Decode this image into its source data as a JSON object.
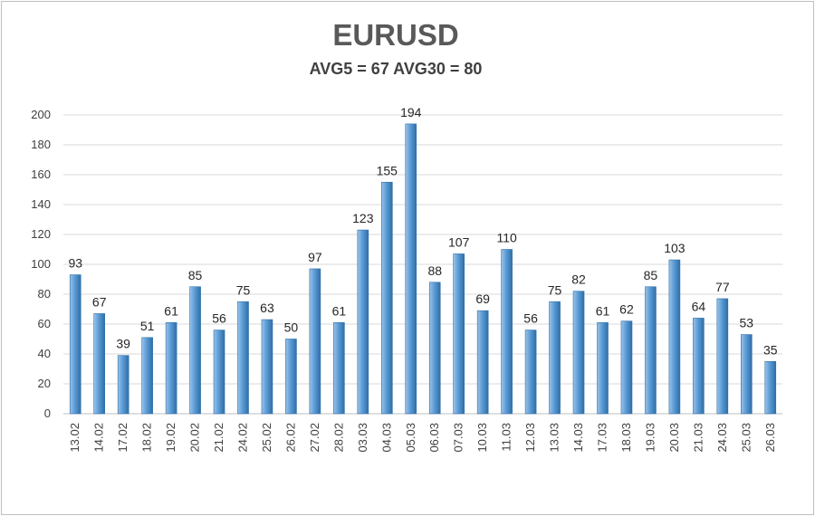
{
  "chart_data": {
    "type": "bar",
    "title": "EURUSD",
    "subtitle": "AVG5 = 67 AVG30 = 80",
    "xlabel": "",
    "ylabel": "",
    "ylim": [
      0,
      200
    ],
    "yticks": [
      0,
      20,
      40,
      60,
      80,
      100,
      120,
      140,
      160,
      180,
      200
    ],
    "grid": true,
    "categories": [
      "13.02",
      "14.02",
      "17.02",
      "18.02",
      "19.02",
      "20.02",
      "21.02",
      "24.02",
      "25.02",
      "26.02",
      "27.02",
      "28.02",
      "03.03",
      "04.03",
      "05.03",
      "06.03",
      "07.03",
      "10.03",
      "11.03",
      "12.03",
      "13.03",
      "14.03",
      "17.03",
      "18.03",
      "19.03",
      "20.03",
      "21.03",
      "24.03",
      "25.03",
      "26.03"
    ],
    "values": [
      93,
      67,
      39,
      51,
      61,
      85,
      56,
      75,
      63,
      50,
      97,
      61,
      123,
      155,
      194,
      88,
      107,
      69,
      110,
      56,
      75,
      82,
      61,
      62,
      85,
      103,
      64,
      77,
      53,
      35
    ],
    "colors": {
      "bar": "#5b9bd5",
      "bar_dark": "#2e6fa8",
      "bar_light": "#9cc3ea",
      "grid": "#d9d9d9"
    }
  }
}
